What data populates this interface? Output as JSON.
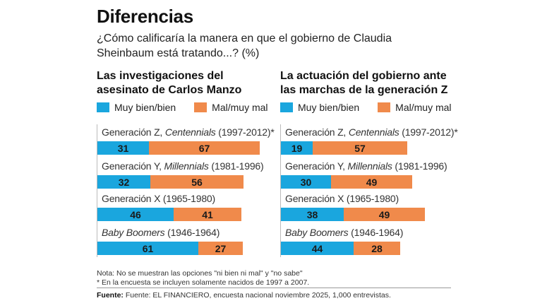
{
  "title": "Diferencias",
  "subtitle": "¿Cómo calificaría la manera en que el gobierno de Claudia Sheinbaum está tratando...? (%)",
  "colors": {
    "positive": "#1aa6de",
    "negative": "#f08a4b"
  },
  "legend": {
    "positive": "Muy bien/bien",
    "negative": "Mal/muy mal"
  },
  "chart_data": [
    {
      "type": "bar",
      "title": "Las investigaciones del asesinato de Carlos Manzo",
      "stacked": true,
      "orientation": "horizontal",
      "categories": [
        {
          "label_a": "Generación Z, ",
          "label_i": "Centennials",
          "label_b": " (1997-2012)*"
        },
        {
          "label_a": "Generación Y, ",
          "label_i": "Millennials",
          "label_b": " (1981-1996)"
        },
        {
          "label_a": "Generación X (1965-1980)",
          "label_i": "",
          "label_b": ""
        },
        {
          "label_a": "",
          "label_i": "Baby Boomers",
          "label_b": " (1946-1964)"
        }
      ],
      "series": [
        {
          "name": "Muy bien/bien",
          "values": [
            31,
            32,
            46,
            61
          ]
        },
        {
          "name": "Mal/muy mal",
          "values": [
            67,
            56,
            41,
            27
          ]
        }
      ]
    },
    {
      "type": "bar",
      "title": "La actuación del gobierno ante las marchas de la generación Z",
      "stacked": true,
      "orientation": "horizontal",
      "categories": [
        {
          "label_a": "Generación Z, ",
          "label_i": "Centennials",
          "label_b": " (1997-2012)*"
        },
        {
          "label_a": "Generación Y, ",
          "label_i": "Millennials",
          "label_b": " (1981-1996)"
        },
        {
          "label_a": "Generación X (1965-1980)",
          "label_i": "",
          "label_b": ""
        },
        {
          "label_a": "",
          "label_i": "Baby Boomers",
          "label_b": " (1946-1964)"
        }
      ],
      "series": [
        {
          "name": "Muy bien/bien",
          "values": [
            19,
            30,
            38,
            44
          ]
        },
        {
          "name": "Mal/muy mal",
          "values": [
            57,
            49,
            49,
            28
          ]
        }
      ]
    }
  ],
  "notes": [
    "Nota: No se muestran las opciones \"ni bien ni mal\" y \"no sabe\"",
    "* En la encuesta se incluyen solamente nacidos de 1997 a 2007."
  ],
  "source_label": "Fuente:",
  "source_text": " Fuente: EL FINANCIERO, encuesta nacional noviembre 2025, 1,000 entrevistas."
}
